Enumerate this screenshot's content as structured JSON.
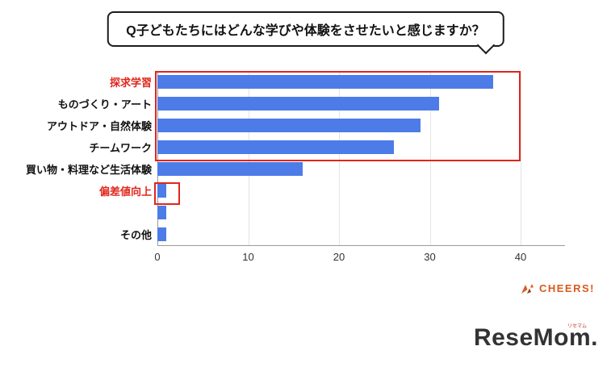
{
  "title": "Q子どもたちにはどんな学びや体験をさせたいと感じますか？",
  "chart_data": {
    "type": "bar",
    "orientation": "horizontal",
    "categories": [
      "探求学習",
      "ものづくり・アート",
      "アウトドア・自然体験",
      "チームワーク",
      "買い物・料理など生活体験",
      "偏差値向上",
      "",
      "その他"
    ],
    "values": [
      37,
      31,
      29,
      26,
      16,
      1,
      1,
      1
    ],
    "xlim": [
      0,
      40
    ],
    "xticks": [
      0,
      10,
      20,
      30,
      40
    ],
    "bar_color": "#4d7ce8",
    "highlight_color": "#e0261c",
    "highlighted_categories": [
      "探求学習",
      "偏差値向上"
    ],
    "grid": true,
    "legend": "none",
    "annotations": [
      {
        "type": "box",
        "label": "top-4-categories",
        "rows": [
          "探求学習",
          "ものづくり・アート",
          "アウトドア・自然体験",
          "チームワーク"
        ]
      },
      {
        "type": "box",
        "label": "hensachi-koujou-bar",
        "rows": [
          "偏差値向上"
        ]
      }
    ]
  },
  "footer": {
    "cheers": "CHEERS!",
    "resemom": "ReseMom.",
    "resemom_ruby": "リセマム"
  }
}
